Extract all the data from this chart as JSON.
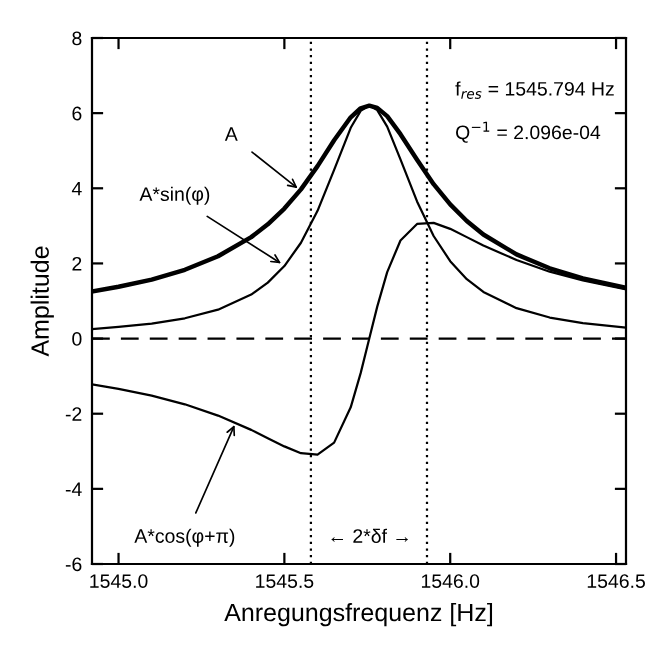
{
  "chart_data": {
    "type": "line",
    "xlabel": "Anregungsfrequenz [Hz]",
    "ylabel": "Amplitude",
    "x": [
      1544.92,
      1545.0,
      1545.1,
      1545.2,
      1545.3,
      1545.4,
      1545.45,
      1545.5,
      1545.55,
      1545.6,
      1545.65,
      1545.7,
      1545.73,
      1545.756,
      1545.78,
      1545.81,
      1545.85,
      1545.9,
      1545.95,
      1546.0,
      1546.05,
      1546.1,
      1546.2,
      1546.3,
      1546.4,
      1546.53
    ],
    "series": [
      {
        "color": "#000000",
        "values": [
          1.25,
          1.38,
          1.57,
          1.83,
          2.19,
          2.7,
          3.04,
          3.46,
          3.97,
          4.59,
          5.28,
          5.89,
          6.13,
          6.2,
          6.14,
          5.92,
          5.44,
          4.76,
          4.11,
          3.57,
          3.13,
          2.77,
          2.24,
          1.87,
          1.6,
          1.35
        ]
      },
      {
        "color": "#000000",
        "values": [
          0.25,
          0.31,
          0.4,
          0.54,
          0.77,
          1.17,
          1.49,
          1.93,
          2.55,
          3.4,
          4.49,
          5.61,
          6.06,
          6.2,
          6.08,
          5.64,
          4.77,
          3.65,
          2.73,
          2.06,
          1.58,
          1.24,
          0.81,
          0.56,
          0.41,
          0.29
        ]
      },
      {
        "color": "#000000",
        "values": [
          -1.22,
          -1.34,
          -1.52,
          -1.75,
          -2.05,
          -2.43,
          -2.65,
          -2.87,
          -3.05,
          -3.09,
          -2.77,
          -1.83,
          -0.92,
          0.0,
          0.85,
          1.77,
          2.61,
          3.05,
          3.08,
          2.92,
          2.7,
          2.48,
          2.09,
          1.78,
          1.55,
          1.31
        ]
      }
    ],
    "xlim": [
      1544.92,
      1546.53
    ],
    "xticks": [
      {
        "value": 1545.0,
        "label": "1545.0"
      },
      {
        "value": 1545.5,
        "label": "1545.5"
      },
      {
        "value": 1546.0,
        "label": "1546.0"
      },
      {
        "value": 1546.5,
        "label": "1546.5"
      }
    ],
    "ylim": [
      -6,
      8
    ],
    "yticks": [
      -6,
      -4,
      -2,
      0,
      2,
      4,
      6,
      8
    ],
    "ref_lines": [
      {
        "axis": "y",
        "value": 0,
        "line_style": "dashed"
      },
      {
        "axis": "x",
        "value": 1545.58,
        "line_style": "dotted"
      },
      {
        "axis": "x",
        "value": 1545.93,
        "line_style": "dotted"
      }
    ],
    "annotations": [
      {
        "text": "A",
        "x": 1545.54,
        "y": 4.0
      },
      {
        "text": "A*sin(φ)",
        "x": 1545.49,
        "y": 2.0
      },
      {
        "text": "A*cos(φ+π)",
        "x": 1545.35,
        "y": -2.3
      },
      "← 2*δf →",
      "f$_{res}$ = 1545.794 Hz",
      "Q$^{−1}$ = 2.096e-04"
    ],
    "grid": false,
    "legend": false,
    "marker": "none",
    "line_style": "solid"
  }
}
